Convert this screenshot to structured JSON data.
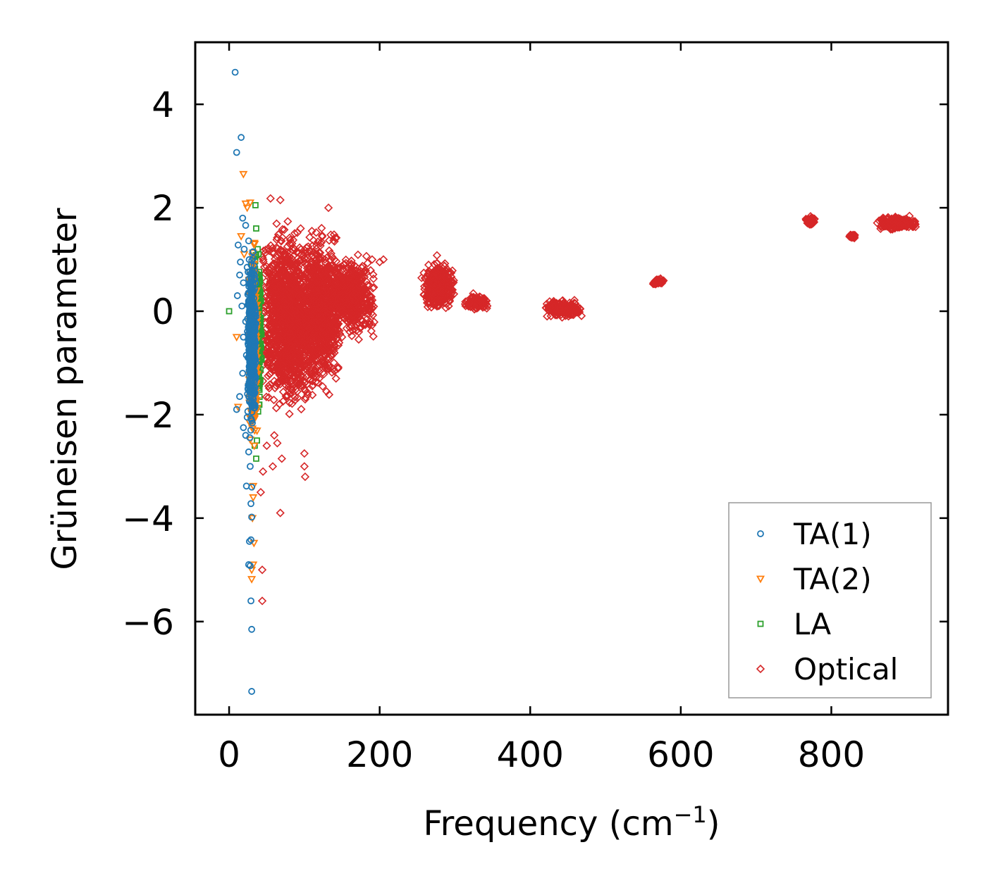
{
  "chart_data": {
    "type": "scatter",
    "title": "",
    "xlabel": "Frequency (cm",
    "xlabel_sup": "−1",
    "xlabel_close": ")",
    "ylabel": "Grüneisen parameter",
    "xlim": [
      -45,
      955
    ],
    "ylim": [
      -7.8,
      5.2
    ],
    "xticks": [
      0,
      200,
      400,
      600,
      800
    ],
    "xtick_labels": [
      "0",
      "200",
      "400",
      "600",
      "800"
    ],
    "yticks": [
      4,
      2,
      0,
      -2,
      -4,
      -6
    ],
    "ytick_labels": [
      "4",
      "2",
      "0",
      "−2",
      "−4",
      "−6"
    ],
    "legend_position": "lower-right",
    "series": [
      {
        "name": "TA(1)",
        "marker": "circle",
        "color": "#1f77b4",
        "points": [
          [
            8,
            4.62
          ],
          [
            16,
            3.36
          ],
          [
            10,
            3.07
          ],
          [
            18,
            1.8
          ],
          [
            22,
            1.66
          ],
          [
            12,
            1.28
          ],
          [
            26,
            1.36
          ],
          [
            20,
            1.2
          ],
          [
            15,
            0.95
          ],
          [
            24,
            0.85
          ],
          [
            14,
            0.7
          ],
          [
            19,
            0.55
          ],
          [
            28,
            0.5
          ],
          [
            11,
            0.3
          ],
          [
            17,
            0.1
          ],
          [
            22,
            -0.2
          ],
          [
            19,
            -0.5
          ],
          [
            23,
            -0.85
          ],
          [
            18,
            -1.2
          ],
          [
            25,
            -1.5
          ],
          [
            14,
            -1.65
          ],
          [
            10,
            -1.9
          ],
          [
            24,
            -2.05
          ],
          [
            19,
            -2.25
          ],
          [
            22,
            -2.4
          ],
          [
            26,
            -2.72
          ],
          [
            28,
            -3.0
          ],
          [
            23,
            -3.38
          ],
          [
            30,
            -3.4
          ],
          [
            29,
            -3.72
          ],
          [
            30,
            -3.98
          ],
          [
            27,
            -4.45
          ],
          [
            29,
            -4.42
          ],
          [
            26,
            -4.9
          ],
          [
            28,
            -4.92
          ],
          [
            29,
            -5.6
          ],
          [
            30,
            -6.15
          ],
          [
            30,
            -7.35
          ]
        ],
        "band": {
          "x": [
            24,
            36
          ],
          "y": [
            -2.6,
            1.5
          ],
          "count": 420
        }
      },
      {
        "name": "TA(2)",
        "marker": "triangle-down",
        "color": "#ff7f0e",
        "points": [
          [
            19,
            2.65
          ],
          [
            22,
            2.08
          ],
          [
            28,
            2.1
          ],
          [
            24,
            2.0
          ],
          [
            16,
            1.45
          ],
          [
            34,
            1.3
          ],
          [
            20,
            1.1
          ],
          [
            10,
            -0.5
          ],
          [
            12,
            -1.85
          ],
          [
            32,
            -3.38
          ],
          [
            32,
            -3.6
          ],
          [
            31,
            -4.0
          ],
          [
            33,
            -4.48
          ],
          [
            30,
            -5.0
          ],
          [
            30,
            -5.18
          ],
          [
            32,
            -4.9
          ]
        ],
        "band": {
          "x": [
            26,
            38
          ],
          "y": [
            -3.0,
            1.6
          ],
          "count": 420
        }
      },
      {
        "name": "LA",
        "marker": "square",
        "color": "#2ca02c",
        "points": [
          [
            0,
            0
          ],
          [
            35,
            2.05
          ],
          [
            36,
            1.6
          ],
          [
            38,
            1.2
          ],
          [
            37,
            -2.5
          ],
          [
            36,
            -2.85
          ],
          [
            34,
            -2.6
          ]
        ],
        "band": {
          "x": [
            30,
            44
          ],
          "y": [
            -2.2,
            1.5
          ],
          "count": 360
        }
      },
      {
        "name": "Optical",
        "marker": "diamond",
        "color": "#d62728",
        "points": [
          [
            55,
            2.18
          ],
          [
            68,
            2.15
          ],
          [
            132,
            2.0
          ],
          [
            60,
            -2.4
          ],
          [
            50,
            -2.6
          ],
          [
            64,
            -2.55
          ],
          [
            58,
            -3.0
          ],
          [
            70,
            -2.85
          ],
          [
            45,
            -3.1
          ],
          [
            100,
            -2.75
          ],
          [
            100,
            -3.0
          ],
          [
            101,
            -3.2
          ],
          [
            42,
            -3.5
          ],
          [
            68,
            -3.9
          ],
          [
            44,
            -5.0
          ],
          [
            44,
            -5.6
          ],
          [
            142,
            -1.3
          ],
          [
            150,
            -0.5
          ],
          [
            175,
            -0.3
          ],
          [
            190,
            1.0
          ],
          [
            200,
            0.95
          ],
          [
            205,
            1.0
          ],
          [
            110,
            1.55
          ],
          [
            95,
            1.6
          ]
        ],
        "clusters": [
          {
            "x": [
              40,
              120
            ],
            "y": [
              -2.2,
              1.9
            ],
            "count": 1500
          },
          {
            "x": [
              100,
              150
            ],
            "y": [
              -1.8,
              1.8
            ],
            "count": 700
          },
          {
            "x": [
              130,
              195
            ],
            "y": [
              -0.6,
              1.2
            ],
            "count": 500
          },
          {
            "x": [
              255,
              300
            ],
            "y": [
              -0.1,
              1.1
            ],
            "count": 350
          },
          {
            "x": [
              312,
              345
            ],
            "y": [
              0.0,
              0.35
            ],
            "count": 90
          },
          {
            "x": [
              418,
              470
            ],
            "y": [
              -0.15,
              0.25
            ],
            "count": 220
          },
          {
            "x": [
              562,
              578
            ],
            "y": [
              0.5,
              0.65
            ],
            "count": 60
          },
          {
            "x": [
              765,
              780
            ],
            "y": [
              1.65,
              1.85
            ],
            "count": 50
          },
          {
            "x": [
              822,
              833
            ],
            "y": [
              1.4,
              1.5
            ],
            "count": 30
          },
          {
            "x": [
              860,
              915
            ],
            "y": [
              1.55,
              1.85
            ],
            "count": 220
          }
        ]
      }
    ]
  }
}
